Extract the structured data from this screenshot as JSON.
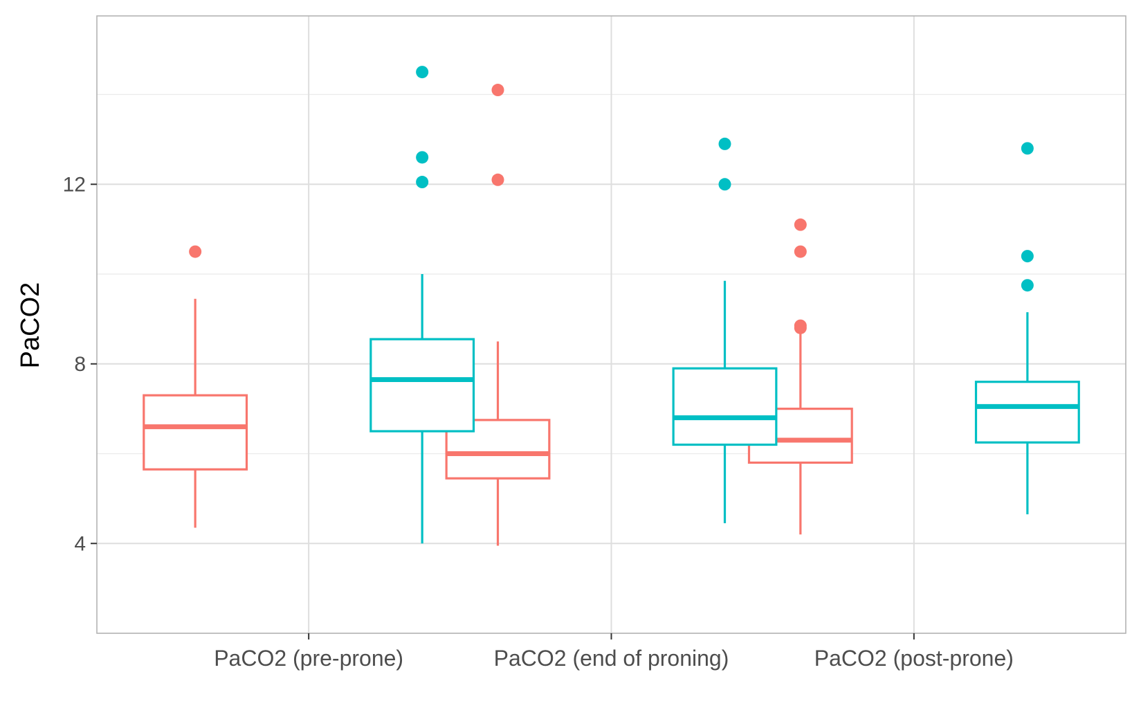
{
  "chart_data": {
    "type": "box",
    "title": "",
    "xlabel": "",
    "ylabel": "PaCO2",
    "ylim": [
      2.0,
      15.75
    ],
    "y_ticks": [
      4,
      8,
      12
    ],
    "y_minor_ticks": [
      2,
      6,
      10,
      14
    ],
    "grid": true,
    "legend": "none",
    "categories": [
      "PaCO2 (pre-prone)",
      "PaCO2 (end of proning)",
      "PaCO2 (post-prone)"
    ],
    "series": [
      {
        "color": "#F8766D",
        "boxes": [
          {
            "whisker_low": 4.35,
            "q1": 5.65,
            "median": 6.6,
            "q3": 7.3,
            "whisker_high": 9.45,
            "outliers": [
              10.5
            ]
          },
          {
            "whisker_low": 3.95,
            "q1": 5.45,
            "median": 6.0,
            "q3": 6.75,
            "whisker_high": 8.5,
            "outliers": [
              12.1,
              14.1
            ]
          },
          {
            "whisker_low": 4.2,
            "q1": 5.8,
            "median": 6.3,
            "q3": 7.0,
            "whisker_high": 8.7,
            "outliers": [
              8.8,
              8.85,
              10.5,
              11.1
            ]
          }
        ]
      },
      {
        "color": "#00BFC4",
        "boxes": [
          {
            "whisker_low": 4.0,
            "q1": 6.5,
            "median": 7.65,
            "q3": 8.55,
            "whisker_high": 10.0,
            "outliers": [
              12.05,
              12.6,
              14.5
            ]
          },
          {
            "whisker_low": 4.45,
            "q1": 6.2,
            "median": 6.8,
            "q3": 7.9,
            "whisker_high": 9.85,
            "outliers": [
              12.0,
              12.9
            ]
          },
          {
            "whisker_low": 4.65,
            "q1": 6.25,
            "median": 7.05,
            "q3": 7.6,
            "whisker_high": 9.15,
            "outliers": [
              9.75,
              10.4,
              12.8
            ]
          }
        ]
      }
    ]
  }
}
